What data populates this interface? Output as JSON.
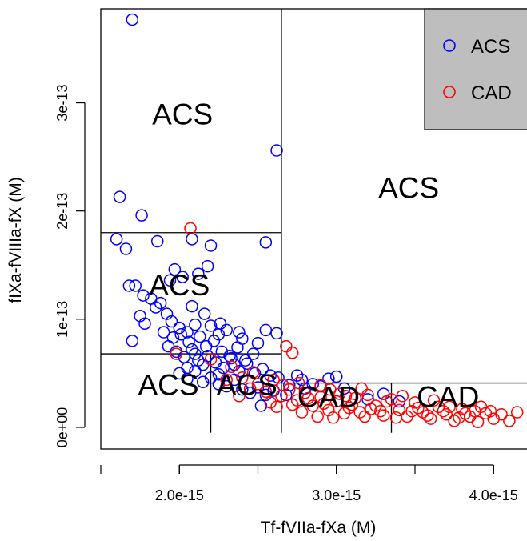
{
  "chart_data": {
    "type": "scatter",
    "xlabel": "Tf-fVIIa-fXa (M)",
    "ylabel": "fIXa-fVIIIa-fX (M)",
    "xlim": [
      1.5e-15,
      4.35e-15
    ],
    "ylim": [
      -2e-14,
      3.87e-13
    ],
    "x_ticks": [
      2e-15,
      3e-15,
      4e-15
    ],
    "x_tick_labels": [
      "2.0e-15",
      "3.0e-15",
      "4.0e-15"
    ],
    "y_ticks": [
      0,
      1e-13,
      2e-13,
      3e-13
    ],
    "y_tick_labels": [
      "0e+00",
      "1e-13",
      "2e-13",
      "3e-13"
    ],
    "legend": {
      "position": "top-right",
      "entries": [
        {
          "label": "ACS",
          "color": "#0000ff"
        },
        {
          "label": "CAD",
          "color": "#ff0000"
        }
      ]
    },
    "partition_lines": [
      {
        "orient": "v",
        "x": 2.65e-15,
        "y": [
          -5e-15,
          3.87e-13
        ]
      },
      {
        "orient": "h",
        "y": 1.8e-13,
        "x": [
          1.5e-15,
          2.65e-15
        ]
      },
      {
        "orient": "h",
        "y": 6.8e-14,
        "x": [
          1.5e-15,
          2.65e-15
        ]
      },
      {
        "orient": "v",
        "x": 2.2e-15,
        "y": [
          -5e-15,
          6.8e-14
        ]
      },
      {
        "orient": "h",
        "y": 4.1e-14,
        "x": [
          2.65e-15,
          4.35e-15
        ]
      },
      {
        "orient": "v",
        "x": 3.35e-15,
        "y": [
          -5e-15,
          4.1e-14
        ]
      }
    ],
    "region_labels": [
      {
        "text": "ACS",
        "x": 2.02e-15,
        "y": 2.8e-13
      },
      {
        "text": "ACS",
        "x": 3.46e-15,
        "y": 2.12e-13
      },
      {
        "text": "ACS",
        "x": 2e-15,
        "y": 1.22e-13
      },
      {
        "text": "ACS",
        "x": 1.93e-15,
        "y": 3e-14
      },
      {
        "text": "ACS",
        "x": 2.43e-15,
        "y": 3e-14
      },
      {
        "text": "CAD",
        "x": 2.95e-15,
        "y": 1.9e-14
      },
      {
        "text": "CAD",
        "x": 3.71e-15,
        "y": 1.9e-14
      }
    ],
    "series": [
      {
        "name": "ACS",
        "color": "#0000ff",
        "points": [
          [
            1.7e-15,
            3.77e-13
          ],
          [
            2.62e-15,
            2.56e-13
          ],
          [
            1.62e-15,
            2.13e-13
          ],
          [
            1.76e-15,
            1.96e-13
          ],
          [
            1.6e-15,
            1.74e-13
          ],
          [
            1.66e-15,
            1.65e-13
          ],
          [
            1.86e-15,
            1.72e-13
          ],
          [
            2.08e-15,
            1.74e-13
          ],
          [
            2.55e-15,
            1.71e-13
          ],
          [
            2.2e-15,
            1.68e-13
          ],
          [
            1.97e-15,
            1.46e-13
          ],
          [
            2.18e-15,
            1.49e-13
          ],
          [
            2.12e-15,
            1.42e-13
          ],
          [
            1.94e-15,
            1.36e-13
          ],
          [
            2.02e-15,
            1.39e-13
          ],
          [
            1.68e-15,
            1.31e-13
          ],
          [
            1.72e-15,
            1.31e-13
          ],
          [
            1.77e-15,
            1.22e-13
          ],
          [
            1.82e-15,
            1.19e-13
          ],
          [
            1.88e-15,
            1.15e-13
          ],
          [
            1.92e-15,
            1.05e-13
          ],
          [
            1.85e-15,
            1.11e-13
          ],
          [
            1.75e-15,
            1.03e-13
          ],
          [
            1.78e-15,
            9.6e-14
          ],
          [
            1.7e-15,
            8e-14
          ],
          [
            1.95e-15,
            9.8e-14
          ],
          [
            2e-15,
            9.2e-14
          ],
          [
            2.05e-15,
            8.8e-14
          ],
          [
            2.1e-15,
            9.5e-14
          ],
          [
            2.2e-15,
            9.4e-14
          ],
          [
            2.25e-15,
            8.6e-14
          ],
          [
            2.3e-15,
            9e-14
          ],
          [
            2.4e-15,
            8.2e-14
          ],
          [
            2.5e-15,
            7.8e-14
          ],
          [
            2.55e-15,
            9e-14
          ],
          [
            2.62e-15,
            8.7e-14
          ],
          [
            1.93e-15,
            7.5e-14
          ],
          [
            1.98e-15,
            7e-14
          ],
          [
            2.03e-15,
            6.5e-14
          ],
          [
            2.08e-15,
            7.2e-14
          ],
          [
            2.12e-15,
            6.2e-14
          ],
          [
            2.15e-15,
            5.8e-14
          ],
          [
            2.18e-15,
            6.6e-14
          ],
          [
            2.23e-15,
            6e-14
          ],
          [
            2.28e-15,
            5.5e-14
          ],
          [
            2.33e-15,
            6.4e-14
          ],
          [
            2.38e-15,
            5.2e-14
          ],
          [
            2.43e-15,
            5.9e-14
          ],
          [
            2.48e-15,
            5e-14
          ],
          [
            2.53e-15,
            5.4e-14
          ],
          [
            2.58e-15,
            4.8e-14
          ],
          [
            2.63e-15,
            4.6e-14
          ],
          [
            2e-15,
            5e-14
          ],
          [
            2.05e-15,
            4.5e-14
          ],
          [
            2.1e-15,
            5.2e-14
          ],
          [
            2.15e-15,
            4.2e-14
          ],
          [
            2.2e-15,
            4.6e-14
          ],
          [
            2.25e-15,
            4e-14
          ],
          [
            2.3e-15,
            3.8e-14
          ],
          [
            2.35e-15,
            4.4e-14
          ],
          [
            2.4e-15,
            3.5e-14
          ],
          [
            2.45e-15,
            3.2e-14
          ],
          [
            2.5e-15,
            3.7e-14
          ],
          [
            2.55e-15,
            3e-14
          ],
          [
            2.6e-15,
            3.4e-14
          ],
          [
            2.05e-15,
            5.5e-14
          ],
          [
            2.1e-15,
            6.8e-14
          ],
          [
            2.17e-15,
            7.5e-14
          ],
          [
            2.22e-15,
            8e-14
          ],
          [
            2.27e-15,
            7e-14
          ],
          [
            2.32e-15,
            6.6e-14
          ],
          [
            2.37e-15,
            7.4e-14
          ],
          [
            2.42e-15,
            6.2e-14
          ],
          [
            2.47e-15,
            6.8e-14
          ],
          [
            1.96e-15,
            8.3e-14
          ],
          [
            2.01e-15,
            8.6e-14
          ],
          [
            2.06e-15,
            7.9e-14
          ],
          [
            2.13e-15,
            8.4e-14
          ],
          [
            1.9e-15,
            8.8e-14
          ],
          [
            2.16e-15,
            1.05e-13
          ],
          [
            2.08e-15,
            1.12e-13
          ],
          [
            2.26e-15,
            9.6e-14
          ],
          [
            2.38e-15,
            8.8e-14
          ],
          [
            2.78e-15,
            4.4e-14
          ],
          [
            2.85e-15,
            4e-14
          ],
          [
            2.95e-15,
            4.5e-14
          ],
          [
            3.05e-15,
            3.6e-14
          ],
          [
            2.9e-15,
            3.8e-14
          ],
          [
            2.75e-15,
            4.8e-14
          ],
          [
            3e-15,
            4.7e-14
          ],
          [
            2.7e-15,
            3.9e-14
          ],
          [
            2.8e-15,
            3.6e-14
          ],
          [
            2.68e-15,
            3e-14
          ],
          [
            2.52e-15,
            2e-14
          ],
          [
            3.3e-15,
            3.1e-14
          ],
          [
            3.4e-15,
            2.4e-14
          ],
          [
            3.2e-15,
            2.6e-14
          ],
          [
            2.25e-15,
            4.9e-14
          ],
          [
            2.35e-15,
            5.8e-14
          ]
        ]
      },
      {
        "name": "CAD",
        "color": "#ff0000",
        "points": [
          [
            2.07e-15,
            1.84e-13
          ],
          [
            2.72e-15,
            6.9e-14
          ],
          [
            2.68e-15,
            7.5e-14
          ],
          [
            1.98e-15,
            6.8e-14
          ],
          [
            2.2e-15,
            6.3e-14
          ],
          [
            2.33e-15,
            5.6e-14
          ],
          [
            2.47e-15,
            5.1e-14
          ],
          [
            2.6e-15,
            4.4e-14
          ],
          [
            2.5e-15,
            4e-14
          ],
          [
            2.55e-15,
            3.3e-14
          ],
          [
            2.58e-15,
            2.3e-14
          ],
          [
            2.65e-15,
            2.9e-14
          ],
          [
            2.7e-15,
            3.5e-14
          ],
          [
            2.75e-15,
            2.5e-14
          ],
          [
            2.8e-15,
            3.2e-14
          ],
          [
            2.85e-15,
            2e-14
          ],
          [
            2.9e-15,
            2.8e-14
          ],
          [
            2.95e-15,
            1.6e-14
          ],
          [
            3e-15,
            2.4e-14
          ],
          [
            3.05e-15,
            1.3e-14
          ],
          [
            3.1e-15,
            2.1e-14
          ],
          [
            3.15e-15,
            1.4e-14
          ],
          [
            3.2e-15,
            3e-14
          ],
          [
            3.25e-15,
            2e-14
          ],
          [
            3.3e-15,
            1.1e-14
          ],
          [
            3.35e-15,
            2.6e-14
          ],
          [
            3.4e-15,
            1.6e-14
          ],
          [
            3.45e-15,
            1e-14
          ],
          [
            3.5e-15,
            2.3e-14
          ],
          [
            3.55e-15,
            1.4e-14
          ],
          [
            3.6e-15,
            8e-15
          ],
          [
            3.65e-15,
            1.9e-14
          ],
          [
            3.7e-15,
            1.2e-14
          ],
          [
            3.75e-15,
            6e-15
          ],
          [
            3.8e-15,
            1.7e-14
          ],
          [
            3.85e-15,
            1e-14
          ],
          [
            3.9e-15,
            5e-15
          ],
          [
            3.95e-15,
            1.3e-14
          ],
          [
            4e-15,
            8e-15
          ],
          [
            4.05e-15,
            1.2e-14
          ],
          [
            4.1e-15,
            6e-15
          ],
          [
            4.15e-15,
            1.4e-14
          ],
          [
            4.25e-15,
            1e-14
          ],
          [
            2.62e-15,
            1.9e-14
          ],
          [
            2.72e-15,
            2.1e-14
          ],
          [
            2.82e-15,
            2.7e-14
          ],
          [
            2.92e-15,
            2.2e-14
          ],
          [
            3.02e-15,
            3.1e-14
          ],
          [
            3.12e-15,
            2.7e-14
          ],
          [
            3.22e-15,
            1.7e-14
          ],
          [
            3.32e-15,
            2.4e-14
          ],
          [
            3.42e-15,
            2.9e-14
          ],
          [
            3.52e-15,
            1.8e-14
          ],
          [
            3.62e-15,
            2.5e-14
          ],
          [
            3.72e-15,
            1.9e-14
          ],
          [
            3.82e-15,
            1.3e-14
          ],
          [
            3.92e-15,
            1.9e-14
          ],
          [
            2.78e-15,
            1.4e-14
          ],
          [
            2.88e-15,
            1e-14
          ],
          [
            2.98e-15,
            9e-15
          ],
          [
            3.08e-15,
            1.8e-14
          ],
          [
            3.18e-15,
            1e-14
          ],
          [
            3.28e-15,
            1.5e-14
          ],
          [
            3.38e-15,
            9e-15
          ],
          [
            3.48e-15,
            1.5e-14
          ],
          [
            3.58e-15,
            1.1e-14
          ],
          [
            3.68e-15,
            1.5e-14
          ],
          [
            3.78e-15,
            9e-15
          ],
          [
            3.88e-15,
            1.5e-14
          ],
          [
            3.98e-15,
            1.5e-14
          ],
          [
            2.4e-15,
            4.6e-14
          ],
          [
            2.45e-15,
            3.6e-14
          ],
          [
            2.38e-15,
            2.9e-14
          ],
          [
            2.66e-15,
            3.9e-14
          ],
          [
            2.76e-15,
            4.1e-14
          ],
          [
            2.96e-15,
            3.5e-14
          ],
          [
            3.06e-15,
            2.9e-14
          ],
          [
            3.16e-15,
            3.6e-14
          ],
          [
            2.3e-15,
            4.4e-14
          ],
          [
            2.9e-15,
            3.9e-14
          ]
        ]
      }
    ]
  }
}
